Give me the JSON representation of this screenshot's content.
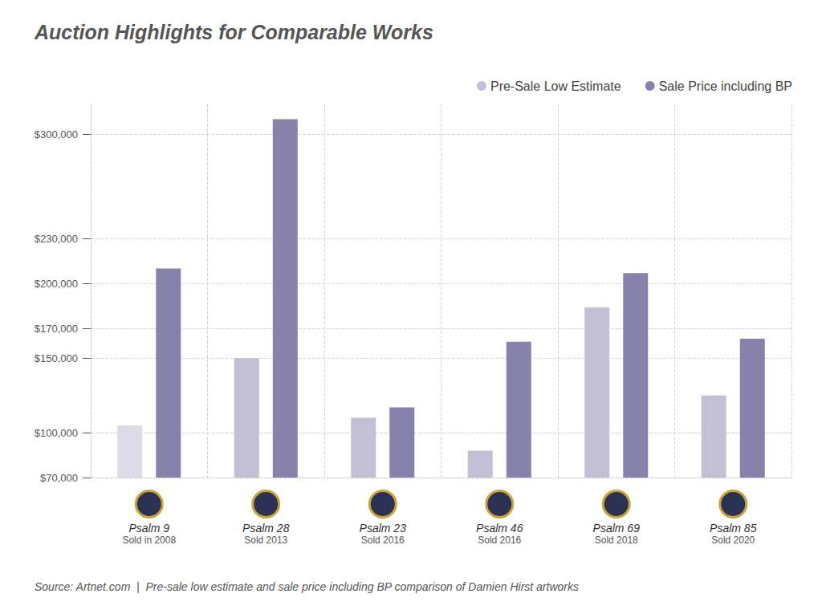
{
  "chart_data": {
    "type": "bar",
    "title": "Auction Highlights for Comparable Works",
    "source": "Source: Artnet.com  |  Pre-sale low estimate and sale price including BP comparison of Damien Hirst artworks",
    "categories": [
      "Psalm 9",
      "Psalm 28",
      "Psalm 23",
      "Psalm 46",
      "Psalm 69",
      "Psalm 85"
    ],
    "category_notes": [
      "Sold in 2008",
      "Sold 2013",
      "Sold 2016",
      "Sold 2016",
      "Sold 2018",
      "Sold 2020"
    ],
    "series": [
      {
        "name": "Pre-Sale Low Estimate",
        "color": "#c3c0d6",
        "colors": [
          "#dedbe8",
          "#c3c0d6",
          "#c3c0d6",
          "#c3c0d6",
          "#c3c0d6",
          "#c3c0d6"
        ],
        "values": [
          105000,
          150000,
          110000,
          88000,
          184000,
          125000
        ]
      },
      {
        "name": "Sale Price including BP",
        "color": "#8782aa",
        "values": [
          210000,
          310000,
          117000,
          161000,
          207000,
          163000
        ]
      }
    ],
    "ylim": [
      70000,
      320000
    ],
    "yticks": [
      {
        "value": 70000,
        "label": "$70,000"
      },
      {
        "value": 100000,
        "label": "$100,000"
      },
      {
        "value": 150000,
        "label": "$150,000"
      },
      {
        "value": 170000,
        "label": "$170,000"
      },
      {
        "value": 200000,
        "label": "$200,000"
      },
      {
        "value": 230000,
        "label": "$230,000"
      },
      {
        "value": 300000,
        "label": "$300,000"
      }
    ],
    "grid": true,
    "legend": "top-right"
  }
}
